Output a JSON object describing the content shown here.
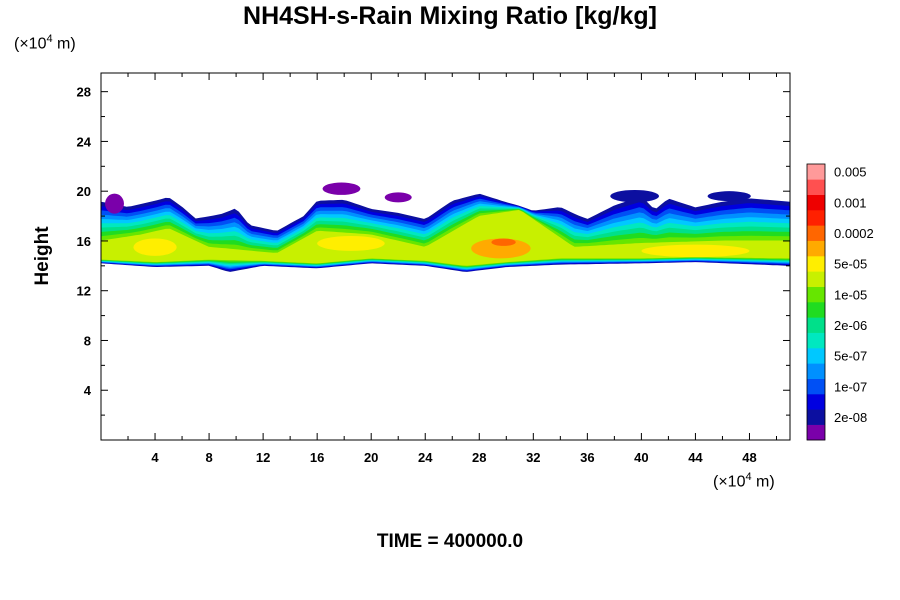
{
  "chart_data": {
    "type": "heatmap",
    "title": "NH4SH-s-Rain Mixing Ratio [kg/kg]",
    "ylabel": "Height",
    "y_unit_prefix": "(×10",
    "y_unit_exp": "4",
    "y_unit_suffix": " m)",
    "x_unit_prefix": "(×10",
    "x_unit_exp": "4",
    "x_unit_suffix": " m)",
    "footer": "TIME = 400000.0",
    "xlim": [
      0,
      51
    ],
    "ylim": [
      0,
      29.5
    ],
    "x_ticks": [
      "4",
      "8",
      "12",
      "16",
      "20",
      "24",
      "28",
      "32",
      "36",
      "40",
      "44",
      "48"
    ],
    "y_ticks": [
      "4",
      "8",
      "12",
      "16",
      "20",
      "24",
      "28"
    ],
    "colorbar": {
      "colors": [
        "#7a00aa",
        "#0c0fa0",
        "#0000e0",
        "#0050f5",
        "#0090ff",
        "#00c8ff",
        "#00e8c0",
        "#00e08a",
        "#20dc20",
        "#66e600",
        "#c8f000",
        "#ffee00",
        "#ffaa00",
        "#ff6600",
        "#ff2000",
        "#ee0000",
        "#ff5050",
        "#ff9a9a"
      ],
      "labels": [
        "2e-08",
        "1e-07",
        "5e-07",
        "2e-06",
        "1e-05",
        "5e-05",
        "0.0002",
        "0.001",
        "0.005"
      ]
    },
    "layer_base": [
      [
        0,
        14.2
      ],
      [
        4,
        13.9
      ],
      [
        8,
        14.0
      ],
      [
        9.5,
        13.5
      ],
      [
        12,
        14.0
      ],
      [
        16,
        13.8
      ],
      [
        20,
        14.2
      ],
      [
        24,
        14.0
      ],
      [
        27,
        13.5
      ],
      [
        30,
        13.9
      ],
      [
        34,
        14.1
      ],
      [
        40,
        14.2
      ],
      [
        44,
        14.3
      ],
      [
        51,
        14.0
      ]
    ],
    "layer_top": [
      [
        0,
        19.5
      ],
      [
        2,
        19.0
      ],
      [
        4,
        19.5
      ],
      [
        5,
        19.8
      ],
      [
        6,
        19.0
      ],
      [
        7,
        18.0
      ],
      [
        9,
        18.5
      ],
      [
        10,
        19.0
      ],
      [
        11,
        17.5
      ],
      [
        13,
        17.0
      ],
      [
        15,
        18.2
      ],
      [
        16,
        19.5
      ],
      [
        18,
        19.6
      ],
      [
        20,
        18.8
      ],
      [
        22,
        18.5
      ],
      [
        24,
        18.0
      ],
      [
        26,
        19.5
      ],
      [
        28,
        20.0
      ],
      [
        30,
        19.2
      ],
      [
        32,
        18.5
      ],
      [
        34,
        19.0
      ],
      [
        36,
        18.0
      ],
      [
        38,
        19.2
      ],
      [
        40,
        20.0
      ],
      [
        41,
        18.8
      ],
      [
        42,
        19.8
      ],
      [
        44,
        19.0
      ],
      [
        46,
        19.5
      ],
      [
        48,
        19.8
      ],
      [
        51,
        19.5
      ]
    ],
    "core_top": [
      [
        0,
        16.0
      ],
      [
        3,
        16.5
      ],
      [
        5,
        17.0
      ],
      [
        8,
        15.5
      ],
      [
        13,
        15.0
      ],
      [
        16,
        16.8
      ],
      [
        20,
        16.5
      ],
      [
        24,
        15.5
      ],
      [
        28,
        18.0
      ],
      [
        31,
        18.5
      ],
      [
        33,
        17.0
      ],
      [
        35,
        15.5
      ],
      [
        40,
        15.8
      ],
      [
        46,
        16.0
      ],
      [
        51,
        16.0
      ]
    ],
    "core_base": [
      [
        0,
        14.5
      ],
      [
        4,
        14.3
      ],
      [
        8,
        14.5
      ],
      [
        12,
        14.4
      ],
      [
        16,
        14.2
      ],
      [
        20,
        14.6
      ],
      [
        24,
        14.4
      ],
      [
        27,
        14.0
      ],
      [
        30,
        14.3
      ],
      [
        34,
        14.6
      ],
      [
        40,
        14.6
      ],
      [
        44,
        14.7
      ],
      [
        51,
        14.6
      ]
    ],
    "hot_spots": [
      {
        "x": 29.6,
        "y": 15.4,
        "rx": 2.2,
        "ry": 0.8,
        "level": 12
      },
      {
        "x": 29.8,
        "y": 15.9,
        "rx": 0.9,
        "ry": 0.3,
        "level": 13
      },
      {
        "x": 18.5,
        "y": 15.8,
        "rx": 2.5,
        "ry": 0.6,
        "level": 11
      },
      {
        "x": 4.0,
        "y": 15.5,
        "rx": 1.6,
        "ry": 0.7,
        "level": 11
      },
      {
        "x": 44.0,
        "y": 15.2,
        "rx": 4.0,
        "ry": 0.5,
        "level": 11
      }
    ],
    "wisps": [
      {
        "x": 17.8,
        "y": 20.2,
        "rx": 1.4,
        "ry": 0.5,
        "level": 0
      },
      {
        "x": 22.0,
        "y": 19.5,
        "rx": 1.0,
        "ry": 0.4,
        "level": 0
      },
      {
        "x": 1.0,
        "y": 19.0,
        "rx": 0.7,
        "ry": 0.8,
        "level": 0
      },
      {
        "x": 39.5,
        "y": 19.6,
        "rx": 1.8,
        "ry": 0.5,
        "level": 1
      },
      {
        "x": 46.5,
        "y": 19.6,
        "rx": 1.6,
        "ry": 0.4,
        "level": 1
      }
    ]
  }
}
